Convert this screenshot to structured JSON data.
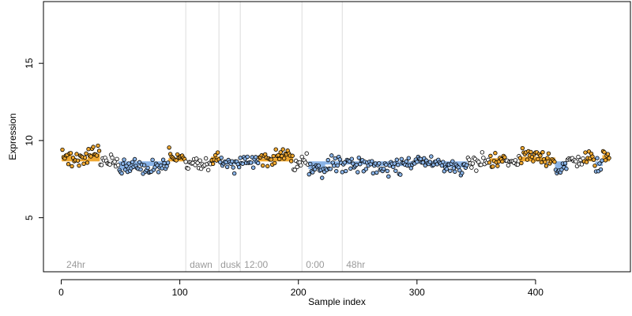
{
  "chart_data": {
    "type": "scatter",
    "title": "",
    "xlabel": "Sample index",
    "ylabel": "Expression",
    "xlim": [
      -15,
      480
    ],
    "ylim": [
      1.5,
      19
    ],
    "x_ticks": [
      0,
      100,
      200,
      300,
      400
    ],
    "y_ticks": [
      5,
      10,
      15
    ],
    "x_tick_labels": [
      "0",
      "100",
      "200",
      "300",
      "400"
    ],
    "y_tick_labels": [
      "5",
      "10",
      "15"
    ],
    "grid": false,
    "legend": "none",
    "baseline": 8.65,
    "point_count": 462,
    "colors": {
      "above": "#f0a830",
      "below": "#8ab4e8",
      "neutral": "#e6e6e6",
      "point_stroke": "#000000",
      "vline": "#dcdcdc",
      "annotation": "#9a9a9a"
    },
    "vlines": [
      105,
      133,
      151,
      203,
      237
    ],
    "annotations": [
      {
        "x": 3,
        "label": "24hr"
      },
      {
        "x": 107,
        "label": "dawn"
      },
      {
        "x": 133,
        "label": "dusk"
      },
      {
        "x": 153,
        "label": "12:00"
      },
      {
        "x": 205,
        "label": "0:00"
      },
      {
        "x": 239,
        "label": "48hr"
      }
    ],
    "segments": [
      {
        "x0": 1,
        "x1": 8,
        "mean": 9.05
      },
      {
        "x0": 9,
        "x1": 22,
        "mean": 8.8
      },
      {
        "x0": 23,
        "x1": 32,
        "mean": 9.15
      },
      {
        "x0": 33,
        "x1": 48,
        "mean": 8.75
      },
      {
        "x0": 49,
        "x1": 58,
        "mean": 8.1
      },
      {
        "x0": 59,
        "x1": 90,
        "mean": 8.35
      },
      {
        "x0": 91,
        "x1": 104,
        "mean": 8.85
      },
      {
        "x0": 105,
        "x1": 126,
        "mean": 8.55
      },
      {
        "x0": 127,
        "x1": 133,
        "mean": 8.95
      },
      {
        "x0": 134,
        "x1": 150,
        "mean": 8.45
      },
      {
        "x0": 151,
        "x1": 166,
        "mean": 8.5
      },
      {
        "x0": 167,
        "x1": 180,
        "mean": 8.85
      },
      {
        "x0": 181,
        "x1": 195,
        "mean": 9.1
      },
      {
        "x0": 196,
        "x1": 208,
        "mean": 8.55
      },
      {
        "x0": 209,
        "x1": 222,
        "mean": 8.15
      },
      {
        "x0": 223,
        "x1": 260,
        "mean": 8.45
      },
      {
        "x0": 261,
        "x1": 290,
        "mean": 8.35
      },
      {
        "x0": 291,
        "x1": 322,
        "mean": 8.5
      },
      {
        "x0": 323,
        "x1": 342,
        "mean": 8.25
      },
      {
        "x0": 343,
        "x1": 360,
        "mean": 8.65
      },
      {
        "x0": 361,
        "x1": 374,
        "mean": 8.85
      },
      {
        "x0": 375,
        "x1": 386,
        "mean": 8.6
      },
      {
        "x0": 387,
        "x1": 404,
        "mean": 8.95
      },
      {
        "x0": 405,
        "x1": 416,
        "mean": 8.9
      },
      {
        "x0": 417,
        "x1": 426,
        "mean": 8.1
      },
      {
        "x0": 427,
        "x1": 440,
        "mean": 8.75
      },
      {
        "x0": 441,
        "x1": 450,
        "mean": 8.8
      },
      {
        "x0": 451,
        "x1": 456,
        "mean": 8.35
      },
      {
        "x0": 457,
        "x1": 462,
        "mean": 9.05
      }
    ]
  }
}
